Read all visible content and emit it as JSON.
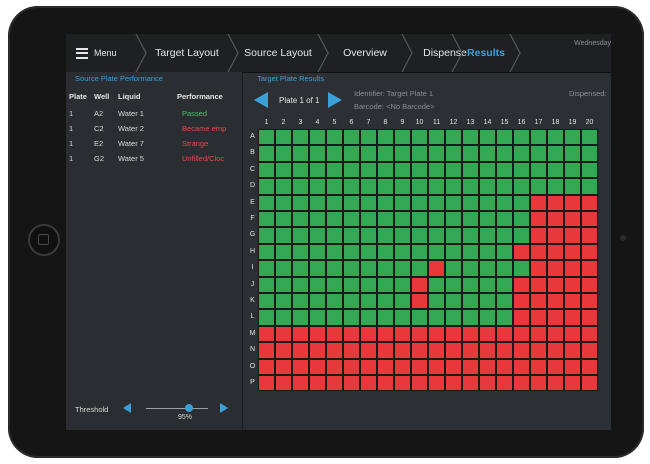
{
  "topbar": {
    "menu_label": "Menu",
    "crumbs": [
      "Target Layout",
      "Source Layout",
      "Overview",
      "Dispense",
      "Results"
    ],
    "active_crumb": "Results",
    "date_text": "Wednesday"
  },
  "source_panel": {
    "title": "Source Plate Performance",
    "headers": {
      "plate": "Plate",
      "well": "Well",
      "liquid": "Liquid",
      "performance": "Performance"
    },
    "rows": [
      {
        "plate": "1",
        "well": "A2",
        "liquid": "Water 1",
        "performance": "Passed",
        "status": "pass"
      },
      {
        "plate": "1",
        "well": "C2",
        "liquid": "Water 2",
        "performance": "Became emp",
        "status": "fail"
      },
      {
        "plate": "1",
        "well": "E2",
        "liquid": "Water 7",
        "performance": "Strange",
        "status": "fail"
      },
      {
        "plate": "1",
        "well": "G2",
        "liquid": "Water 5",
        "performance": "Unfilled/Cloc",
        "status": "fail"
      }
    ],
    "threshold_label": "Threshold",
    "threshold_value": "95%",
    "threshold_fraction": 0.95
  },
  "target_panel": {
    "title": "Target Plate Results",
    "plate_nav": "Plate 1 of 1",
    "identifier": "Identifier: Target Plate 1",
    "barcode": "Barcode: <No Barcode>",
    "dispensed": "Dispensed:"
  },
  "plate": {
    "rows": [
      "A",
      "B",
      "C",
      "D",
      "E",
      "F",
      "G",
      "H",
      "I",
      "J",
      "K",
      "L",
      "M",
      "N",
      "O",
      "P"
    ],
    "columns": [
      "1",
      "2",
      "3",
      "4",
      "5",
      "6",
      "7",
      "8",
      "9",
      "10",
      "11",
      "12",
      "13",
      "14",
      "15",
      "16",
      "17",
      "18",
      "19",
      "20"
    ],
    "red_wells": {
      "E": [
        17,
        18,
        19,
        20
      ],
      "F": [
        17,
        18,
        19,
        20
      ],
      "G": [
        17,
        18,
        19,
        20
      ],
      "H": [
        16,
        17,
        18,
        19,
        20
      ],
      "I": [
        11,
        17,
        18,
        19,
        20
      ],
      "J": [
        10,
        16,
        17,
        18,
        19,
        20
      ],
      "K": [
        10,
        16,
        17,
        18,
        19,
        20
      ],
      "L": [
        16,
        17,
        18,
        19,
        20
      ],
      "M": "all",
      "N": "all",
      "O": "all",
      "P": "all"
    },
    "colors": {
      "pass": "#34a853",
      "fail": "#e8383b"
    }
  },
  "colors": {
    "accent": "#3aa0d8",
    "pass_text": "#44c767",
    "fail_text": "#e84a4a"
  }
}
